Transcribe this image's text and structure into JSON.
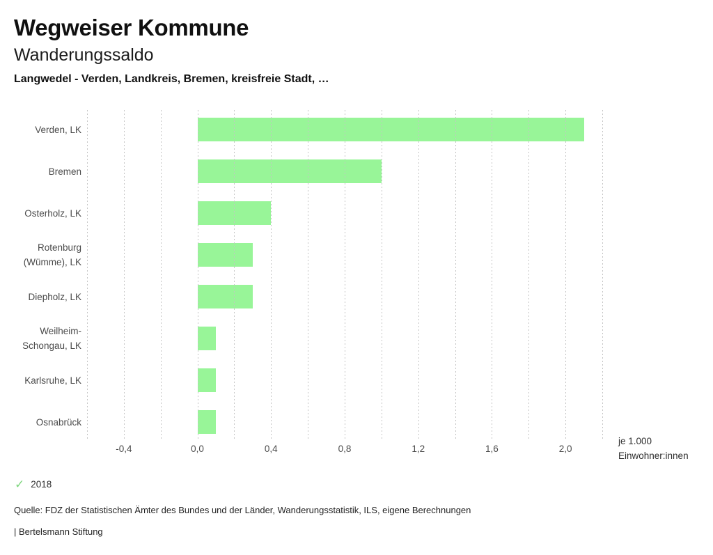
{
  "header": {
    "title": "Wegweiser Kommune",
    "subtitle": "Wanderungssaldo",
    "region_line": "Langwedel - Verden, Landkreis, Bremen, kreisfreie Stadt, …"
  },
  "chart_data": {
    "type": "bar",
    "orientation": "horizontal",
    "title": "Wanderungssaldo",
    "categories": [
      "Verden, LK",
      "Bremen",
      "Osterholz, LK",
      "Rotenburg\n(Wümme), LK",
      "Diepholz, LK",
      "Weilheim-\nSchongau, LK",
      "Karlsruhe, LK",
      "Osnabrück"
    ],
    "values": [
      2.1,
      1.0,
      0.4,
      0.3,
      0.3,
      0.1,
      0.1,
      0.1
    ],
    "series_name": "2018",
    "xlim": [
      -0.6,
      2.2
    ],
    "grid_step": 0.2,
    "tick_values": [
      -0.4,
      0.0,
      0.4,
      0.8,
      1.2,
      1.6,
      2.0
    ],
    "tick_labels": [
      "-0,4",
      "0,0",
      "0,4",
      "0,8",
      "1,2",
      "1,6",
      "2,0"
    ],
    "xlabel_lines": [
      "je 1.000",
      "Einwohner:innen"
    ],
    "grid": true,
    "bar_color": "#98f598",
    "grid_color": "#c4c4c4",
    "legend": {
      "position": "bottom-left",
      "check_icon": "✓",
      "check_color": "#7ed67e",
      "label": "2018"
    }
  },
  "footer": {
    "source": "Quelle: FDZ der Statistischen Ämter des Bundes und der Länder, Wanderungsstatistik, ILS, eigene Berechnungen",
    "attribution": "| Bertelsmann Stiftung"
  }
}
